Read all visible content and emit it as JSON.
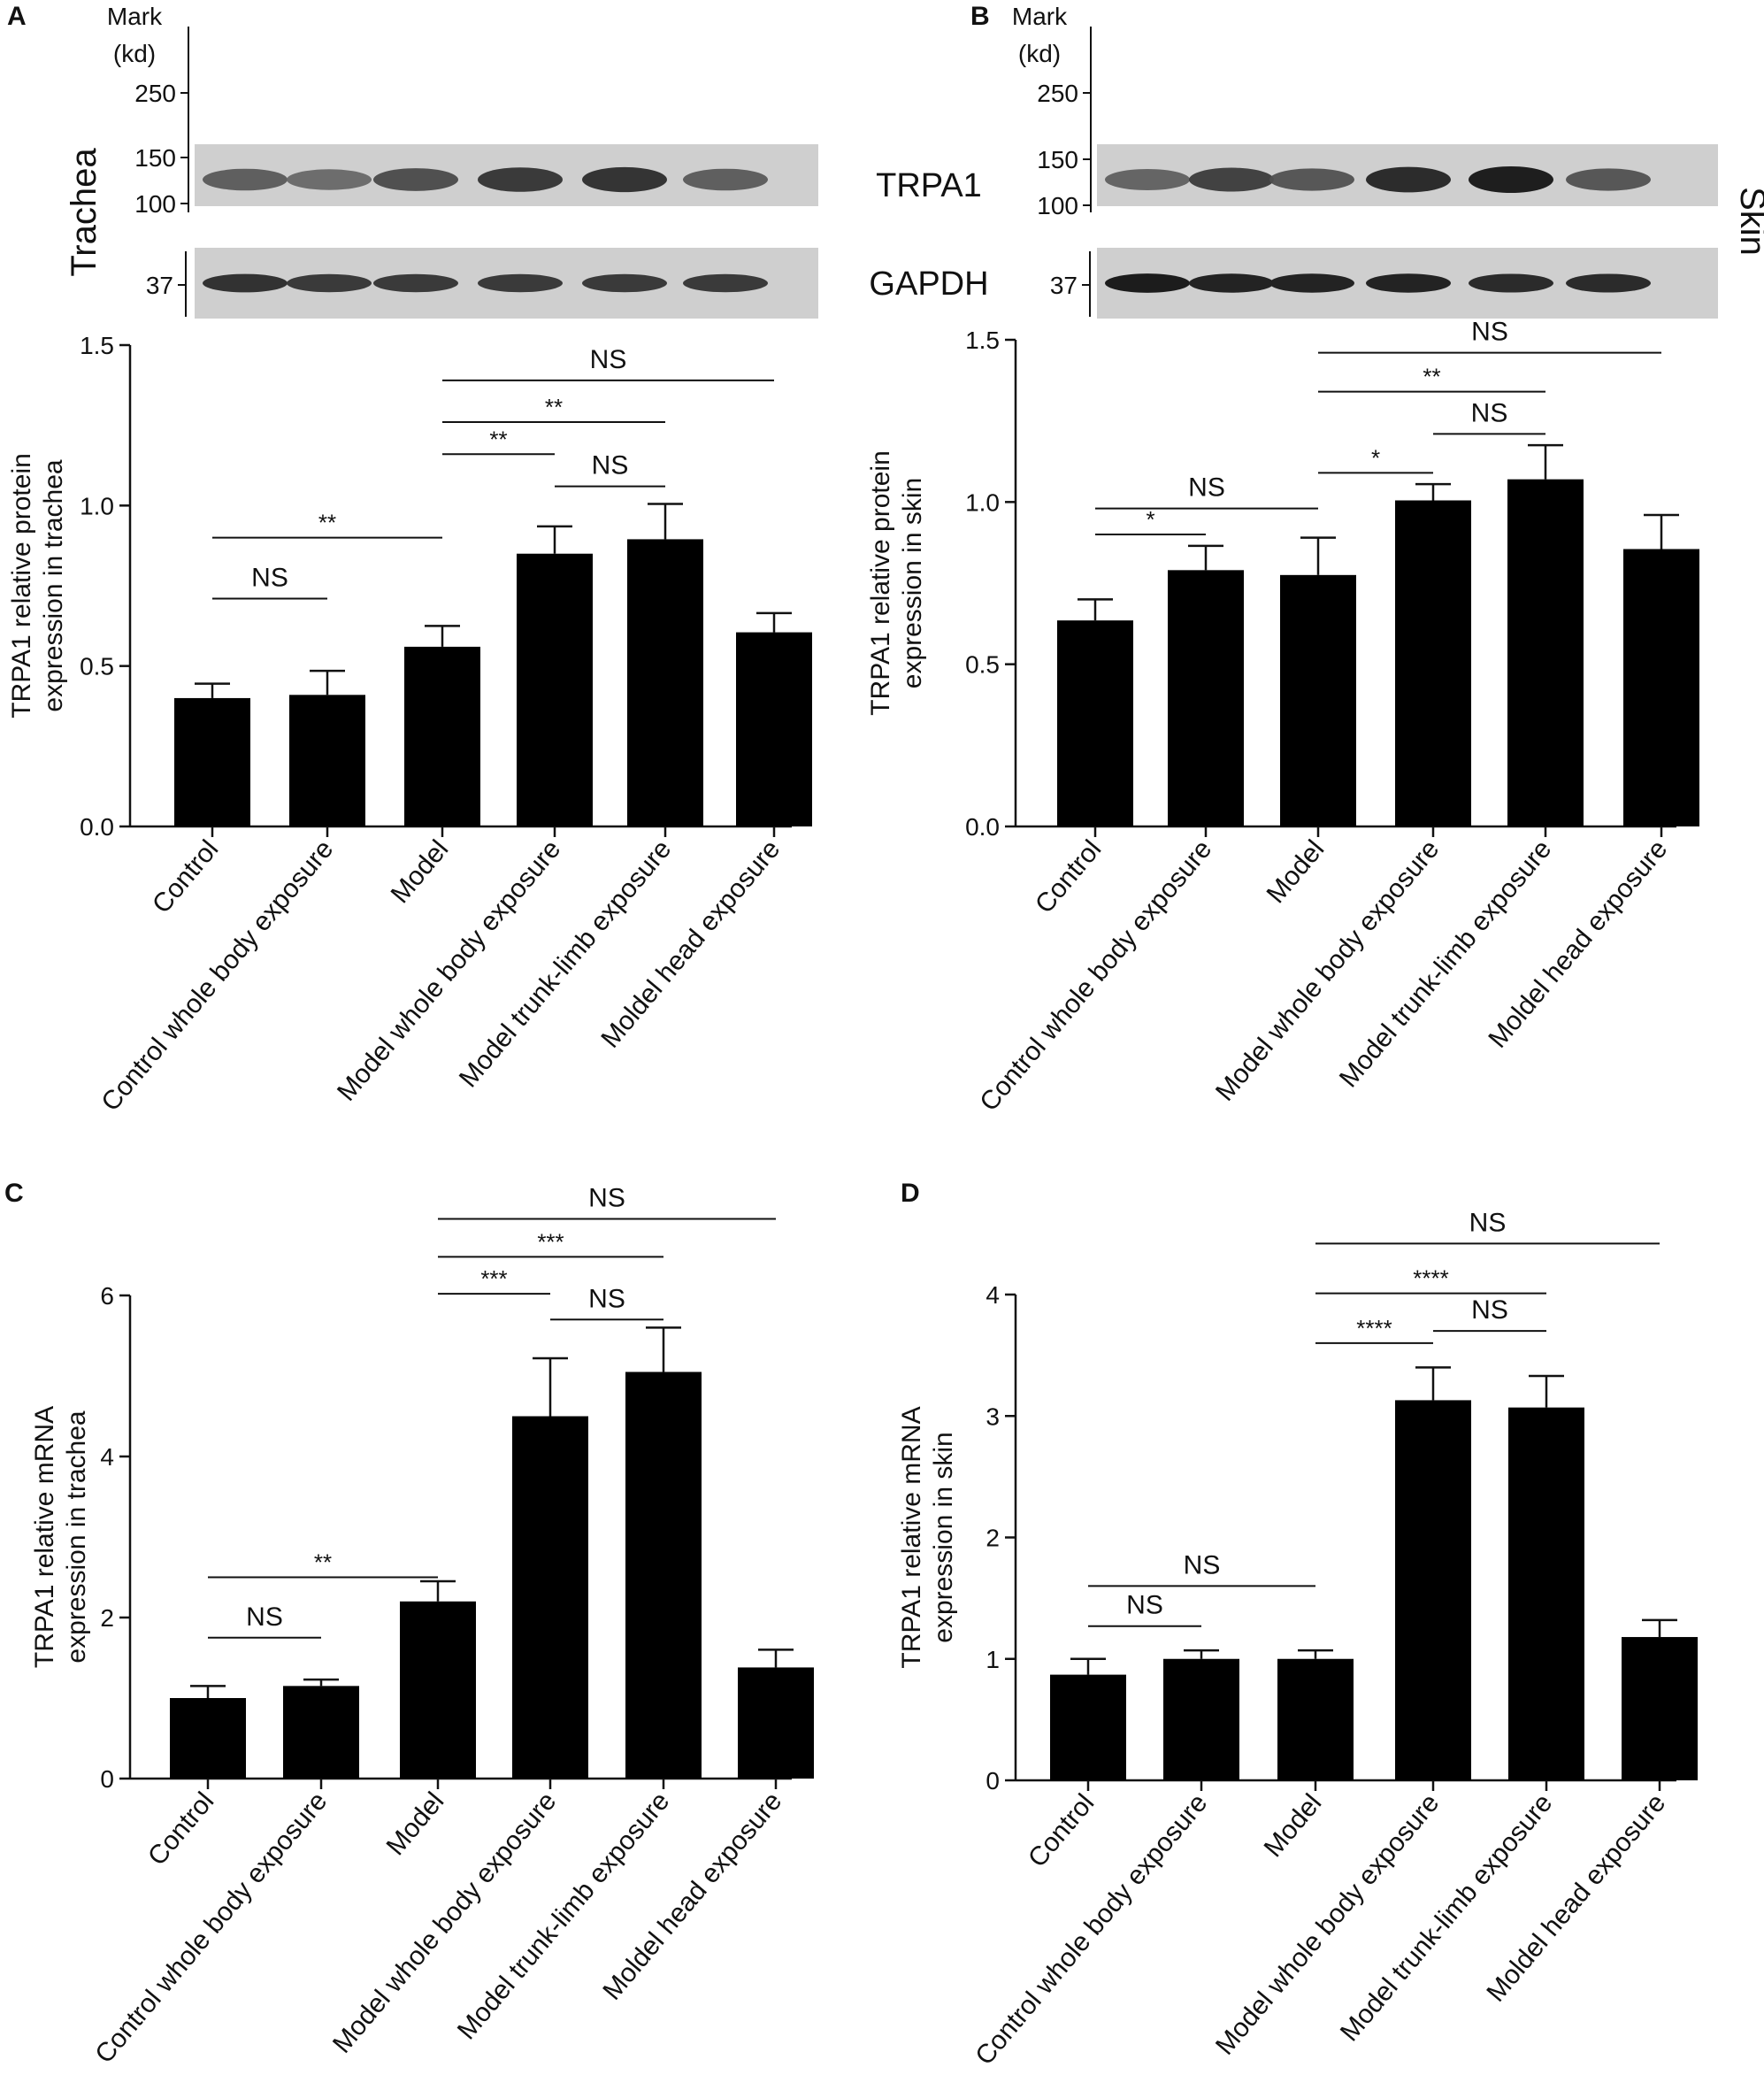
{
  "blots": [
    {
      "panel_label": "A",
      "tissue_label": "Trachea",
      "mark_header": [
        "Mark",
        "(kd)"
      ],
      "mark_ticks": [
        "250",
        "150",
        "100"
      ],
      "gapdh_tick": "37",
      "band_labels": [
        "TRPA1",
        "GAPDH"
      ],
      "trpa1_band_intensity": [
        0.55,
        0.45,
        0.65,
        0.8,
        0.85,
        0.55
      ],
      "gapdh_band_intensity": [
        0.8,
        0.75,
        0.75,
        0.75,
        0.75,
        0.75
      ]
    },
    {
      "panel_label": "B",
      "tissue_label": "Skin",
      "mark_header": [
        "Mark",
        "(kd)"
      ],
      "mark_ticks": [
        "250",
        "150",
        "100"
      ],
      "gapdh_tick": "37",
      "band_labels": [],
      "trpa1_band_intensity": [
        0.5,
        0.75,
        0.6,
        0.9,
        1.0,
        0.6
      ],
      "gapdh_band_intensity": [
        0.95,
        0.9,
        0.9,
        0.9,
        0.85,
        0.85
      ]
    }
  ],
  "chart_data": [
    {
      "type": "bar",
      "panel_label": "",
      "ylabel": [
        "TRPA1 relative protein",
        "expression in trachea"
      ],
      "categories": [
        "Control",
        "Control whole body exposure",
        "Model",
        "Model whole body exposure",
        "Model trunk-limb exposure",
        "Moldel head exposure"
      ],
      "values": [
        0.4,
        0.41,
        0.56,
        0.85,
        0.895,
        0.605
      ],
      "errors": [
        0.045,
        0.075,
        0.065,
        0.085,
        0.11,
        0.06
      ],
      "ylim": [
        0,
        1.5
      ],
      "yticks": [
        "0.0",
        "0.5",
        "1.0",
        "1.5"
      ],
      "ytick_values": [
        0,
        0.5,
        1.0,
        1.5
      ],
      "bar_color": "#000000",
      "significance": [
        {
          "from": 2,
          "to": 5,
          "label": "NS",
          "level": 1.39
        },
        {
          "from": 2,
          "to": 4,
          "label": "**",
          "level": 1.26
        },
        {
          "from": 2,
          "to": 3,
          "label": "**",
          "level": 1.16
        },
        {
          "from": 3,
          "to": 4,
          "label": "NS",
          "level": 1.06
        },
        {
          "from": 0,
          "to": 2,
          "label": "**",
          "level": 0.9
        },
        {
          "from": 0,
          "to": 1,
          "label": "NS",
          "level": 0.71
        }
      ]
    },
    {
      "type": "bar",
      "panel_label": "",
      "ylabel": [
        "TRPA1 relative protein",
        "expression in skin"
      ],
      "categories": [
        "Control",
        "Control whole body exposure",
        "Model",
        "Model whole body exposure",
        "Model trunk-limb exposure",
        "Moldel head exposure"
      ],
      "values": [
        0.635,
        0.79,
        0.775,
        1.005,
        1.07,
        0.855
      ],
      "errors": [
        0.065,
        0.075,
        0.115,
        0.05,
        0.105,
        0.105
      ],
      "ylim": [
        0,
        1.5
      ],
      "yticks": [
        "0.0",
        "0.5",
        "1.0",
        "1.5"
      ],
      "ytick_values": [
        0,
        0.5,
        1.0,
        1.5
      ],
      "bar_color": "#000000",
      "significance": [
        {
          "from": 2,
          "to": 5,
          "label": "NS",
          "level": 1.46
        },
        {
          "from": 2,
          "to": 4,
          "label": "**",
          "level": 1.34
        },
        {
          "from": 3,
          "to": 4,
          "label": "NS",
          "level": 1.21
        },
        {
          "from": 2,
          "to": 3,
          "label": "*",
          "level": 1.09
        },
        {
          "from": 0,
          "to": 2,
          "label": "NS",
          "level": 0.98
        },
        {
          "from": 0,
          "to": 1,
          "label": "*",
          "level": 0.9
        }
      ]
    },
    {
      "type": "bar",
      "panel_label": "C",
      "ylabel": [
        "TRPA1 relative mRNA",
        "expression in trachea"
      ],
      "categories": [
        "Control",
        "Control whole body exposure",
        "Model",
        "Model whole body exposure",
        "Model trunk-limb exposure",
        "Moldel head exposure"
      ],
      "values": [
        1.0,
        1.15,
        2.2,
        4.5,
        5.05,
        1.38
      ],
      "errors": [
        0.15,
        0.08,
        0.25,
        0.72,
        0.55,
        0.22
      ],
      "ylim": [
        0,
        6
      ],
      "yticks": [
        "0",
        "2",
        "4",
        "6"
      ],
      "ytick_values": [
        0,
        2,
        4,
        6
      ],
      "bar_color": "#000000",
      "significance": [
        {
          "from": 2,
          "to": 5,
          "label": "NS",
          "level": 6.95
        },
        {
          "from": 2,
          "to": 4,
          "label": "***",
          "level": 6.48
        },
        {
          "from": 2,
          "to": 3,
          "label": "***",
          "level": 6.02
        },
        {
          "from": 3,
          "to": 4,
          "label": "NS",
          "level": 5.7
        },
        {
          "from": 0,
          "to": 2,
          "label": "**",
          "level": 2.5
        },
        {
          "from": 0,
          "to": 1,
          "label": "NS",
          "level": 1.75
        }
      ]
    },
    {
      "type": "bar",
      "panel_label": "D",
      "ylabel": [
        "TRPA1 relative mRNA",
        "expression in skin"
      ],
      "categories": [
        "Control",
        "Control whole body exposure",
        "Model",
        "Model whole body exposure",
        "Model trunk-limb exposure",
        "Moldel head exposure"
      ],
      "values": [
        0.87,
        1.0,
        1.0,
        3.13,
        3.07,
        1.18
      ],
      "errors": [
        0.13,
        0.07,
        0.07,
        0.27,
        0.26,
        0.14
      ],
      "ylim": [
        0,
        4
      ],
      "yticks": [
        "0",
        "1",
        "2",
        "3",
        "4"
      ],
      "ytick_values": [
        0,
        1,
        2,
        3,
        4
      ],
      "bar_color": "#000000",
      "significance": [
        {
          "from": 2,
          "to": 5,
          "label": "NS",
          "level": 4.42
        },
        {
          "from": 2,
          "to": 4,
          "label": "****",
          "level": 4.01
        },
        {
          "from": 2,
          "to": 3,
          "label": "****",
          "level": 3.6
        },
        {
          "from": 3,
          "to": 4,
          "label": "NS",
          "level": 3.7
        },
        {
          "from": 0,
          "to": 2,
          "label": "NS",
          "level": 1.6
        },
        {
          "from": 0,
          "to": 1,
          "label": "NS",
          "level": 1.27
        }
      ]
    }
  ]
}
